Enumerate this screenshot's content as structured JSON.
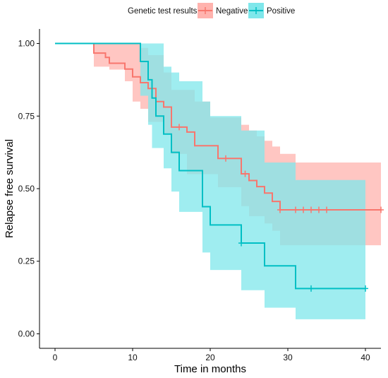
{
  "chart_data": {
    "type": "line",
    "subtype": "kaplan-meier survival curve with confidence bands",
    "title": "",
    "xlabel": "Time in months",
    "ylabel": "Relapse free survival",
    "xlim": [
      -2,
      42
    ],
    "ylim": [
      -0.05,
      1.05
    ],
    "x_ticks": [
      0,
      10,
      20,
      30,
      40
    ],
    "x_tick_labels": [
      "0",
      "10",
      "20",
      "30",
      "40"
    ],
    "y_ticks": [
      0.0,
      0.25,
      0.5,
      0.75,
      1.0
    ],
    "y_tick_labels": [
      "0.00",
      "0.25",
      "0.50",
      "0.75",
      "1.00"
    ],
    "grid": false,
    "legend": {
      "title": "Genetic test results",
      "placement": "top",
      "entries": [
        "Negative",
        "Positive"
      ]
    },
    "series": [
      {
        "name": "Negative",
        "color": "#F8766D",
        "band_color": "#FFB3AE",
        "steps": [
          [
            0,
            1.0
          ],
          [
            5,
            0.967
          ],
          [
            6.5,
            0.952
          ],
          [
            7,
            0.932
          ],
          [
            9,
            0.912
          ],
          [
            10,
            0.885
          ],
          [
            11,
            0.865
          ],
          [
            12,
            0.845
          ],
          [
            13,
            0.8
          ],
          [
            14,
            0.781
          ],
          [
            15,
            0.712
          ],
          [
            17,
            0.695
          ],
          [
            18,
            0.648
          ],
          [
            21,
            0.604
          ],
          [
            24,
            0.551
          ],
          [
            25,
            0.528
          ],
          [
            26,
            0.507
          ],
          [
            27,
            0.485
          ],
          [
            28,
            0.456
          ],
          [
            29,
            0.427
          ],
          [
            42,
            0.427
          ]
        ],
        "ci_upper": [
          [
            0,
            1.0
          ],
          [
            5,
            1.0
          ],
          [
            10,
            1.0
          ],
          [
            11,
            0.985
          ],
          [
            12,
            0.96
          ],
          [
            14,
            0.9
          ],
          [
            15,
            0.84
          ],
          [
            18,
            0.8
          ],
          [
            20,
            0.745
          ],
          [
            24,
            0.72
          ],
          [
            25,
            0.7
          ],
          [
            26,
            0.68
          ],
          [
            27,
            0.665
          ],
          [
            28,
            0.645
          ],
          [
            29,
            0.62
          ],
          [
            31,
            0.59
          ],
          [
            42,
            0.59
          ]
        ],
        "ci_lower": [
          [
            0,
            1.0
          ],
          [
            5,
            0.92
          ],
          [
            7,
            0.91
          ],
          [
            9,
            0.87
          ],
          [
            10,
            0.8
          ],
          [
            11,
            0.775
          ],
          [
            12,
            0.73
          ],
          [
            14,
            0.69
          ],
          [
            15,
            0.62
          ],
          [
            17,
            0.55
          ],
          [
            21,
            0.505
          ],
          [
            24,
            0.44
          ],
          [
            25,
            0.405
          ],
          [
            27,
            0.38
          ],
          [
            28,
            0.355
          ],
          [
            29,
            0.305
          ],
          [
            42,
            0.305
          ]
        ],
        "censor_x": [
          16,
          22,
          24.5,
          29,
          31,
          32,
          33,
          34,
          35,
          42
        ]
      },
      {
        "name": "Positive",
        "color": "#00BFC4",
        "band_color": "#7FE7EB",
        "steps": [
          [
            0,
            1.0
          ],
          [
            11,
            0.938
          ],
          [
            12,
            0.875
          ],
          [
            12.5,
            0.812
          ],
          [
            13,
            0.75
          ],
          [
            14,
            0.688
          ],
          [
            15,
            0.625
          ],
          [
            16,
            0.562
          ],
          [
            19,
            0.438
          ],
          [
            20,
            0.375
          ],
          [
            24,
            0.3125
          ],
          [
            27,
            0.234
          ],
          [
            31,
            0.156
          ],
          [
            40,
            0.156
          ]
        ],
        "ci_upper": [
          [
            0,
            1.0
          ],
          [
            13,
            1.0
          ],
          [
            14,
            0.92
          ],
          [
            15,
            0.9
          ],
          [
            16,
            0.87
          ],
          [
            19,
            0.8
          ],
          [
            20,
            0.75
          ],
          [
            24,
            0.7
          ],
          [
            27,
            0.59
          ],
          [
            31,
            0.53
          ],
          [
            40,
            0.53
          ]
        ],
        "ci_lower": [
          [
            0,
            1.0
          ],
          [
            11,
            0.82
          ],
          [
            12,
            0.72
          ],
          [
            12.5,
            0.64
          ],
          [
            14,
            0.57
          ],
          [
            15,
            0.49
          ],
          [
            16,
            0.42
          ],
          [
            19,
            0.28
          ],
          [
            20,
            0.22
          ],
          [
            24,
            0.15
          ],
          [
            27,
            0.09
          ],
          [
            31,
            0.05
          ],
          [
            40,
            0.05
          ]
        ],
        "censor_x": [
          24,
          33,
          40
        ]
      }
    ]
  }
}
